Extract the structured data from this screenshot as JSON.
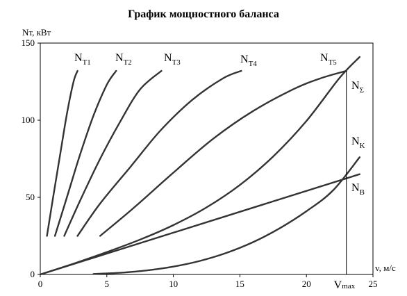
{
  "chart_data": {
    "type": "line",
    "title": "График мощностного баланса",
    "ylabel": "Nт, кВт",
    "xlabel": "v, м/с",
    "xlim": [
      0,
      25
    ],
    "ylim": [
      0,
      150
    ],
    "x_ticks": [
      0,
      5,
      10,
      15,
      20,
      25
    ],
    "y_ticks": [
      0,
      50,
      100,
      150
    ],
    "grid": false,
    "colors": {
      "line": "#333333",
      "frame": "#000000",
      "text": "#000000"
    },
    "series": [
      {
        "label_main": "N",
        "label_sub": "T1",
        "x": [
          0.5,
          1.0,
          1.5,
          2.0,
          2.5,
          2.8
        ],
        "y": [
          25,
          52,
          78,
          104,
          125,
          132
        ]
      },
      {
        "label_main": "N",
        "label_sub": "T2",
        "x": [
          1.1,
          2.0,
          3.0,
          4.0,
          5.0,
          5.7
        ],
        "y": [
          25,
          50,
          78,
          103,
          123,
          132
        ]
      },
      {
        "label_main": "N",
        "label_sub": "T3",
        "x": [
          1.8,
          3.0,
          4.5,
          6.0,
          7.5,
          9.1
        ],
        "y": [
          25,
          48,
          75,
          99,
          120,
          132
        ]
      },
      {
        "label_main": "N",
        "label_sub": "T4",
        "x": [
          2.8,
          4.5,
          6.8,
          9.0,
          11.4,
          13.7,
          15.1
        ],
        "y": [
          25,
          46,
          70,
          93,
          113,
          127,
          132
        ]
      },
      {
        "label_main": "N",
        "label_sub": "T5",
        "x": [
          4.5,
          7.0,
          10.0,
          13.0,
          16.0,
          19.0,
          21.0,
          23.0
        ],
        "y": [
          25,
          43,
          66,
          88,
          106,
          120,
          127,
          132
        ]
      },
      {
        "label_main": "N",
        "label_sub": "Σ",
        "x": [
          0,
          2.5,
          5,
          7.5,
          10,
          12.5,
          15,
          17.5,
          20,
          22.5,
          24.0
        ],
        "y": [
          0,
          7,
          14.5,
          22.6,
          32,
          43.5,
          58,
          76.5,
          99.5,
          127.5,
          141
        ]
      },
      {
        "label_main": "N",
        "label_sub": "K",
        "x": [
          4,
          6,
          8,
          10,
          12,
          14,
          16,
          18,
          20,
          22,
          24
        ],
        "y": [
          0.3,
          1.1,
          2.6,
          5.1,
          8.8,
          14,
          21,
          30,
          41,
          54.5,
          76
        ]
      },
      {
        "label_main": "N",
        "label_sub": "B",
        "x": [
          0,
          24.0
        ],
        "y": [
          0,
          65
        ]
      }
    ],
    "annotations": {
      "vmax_main": "V",
      "vmax_sub": "max",
      "vmax_x": 23.0,
      "vmax_y": 132
    }
  }
}
